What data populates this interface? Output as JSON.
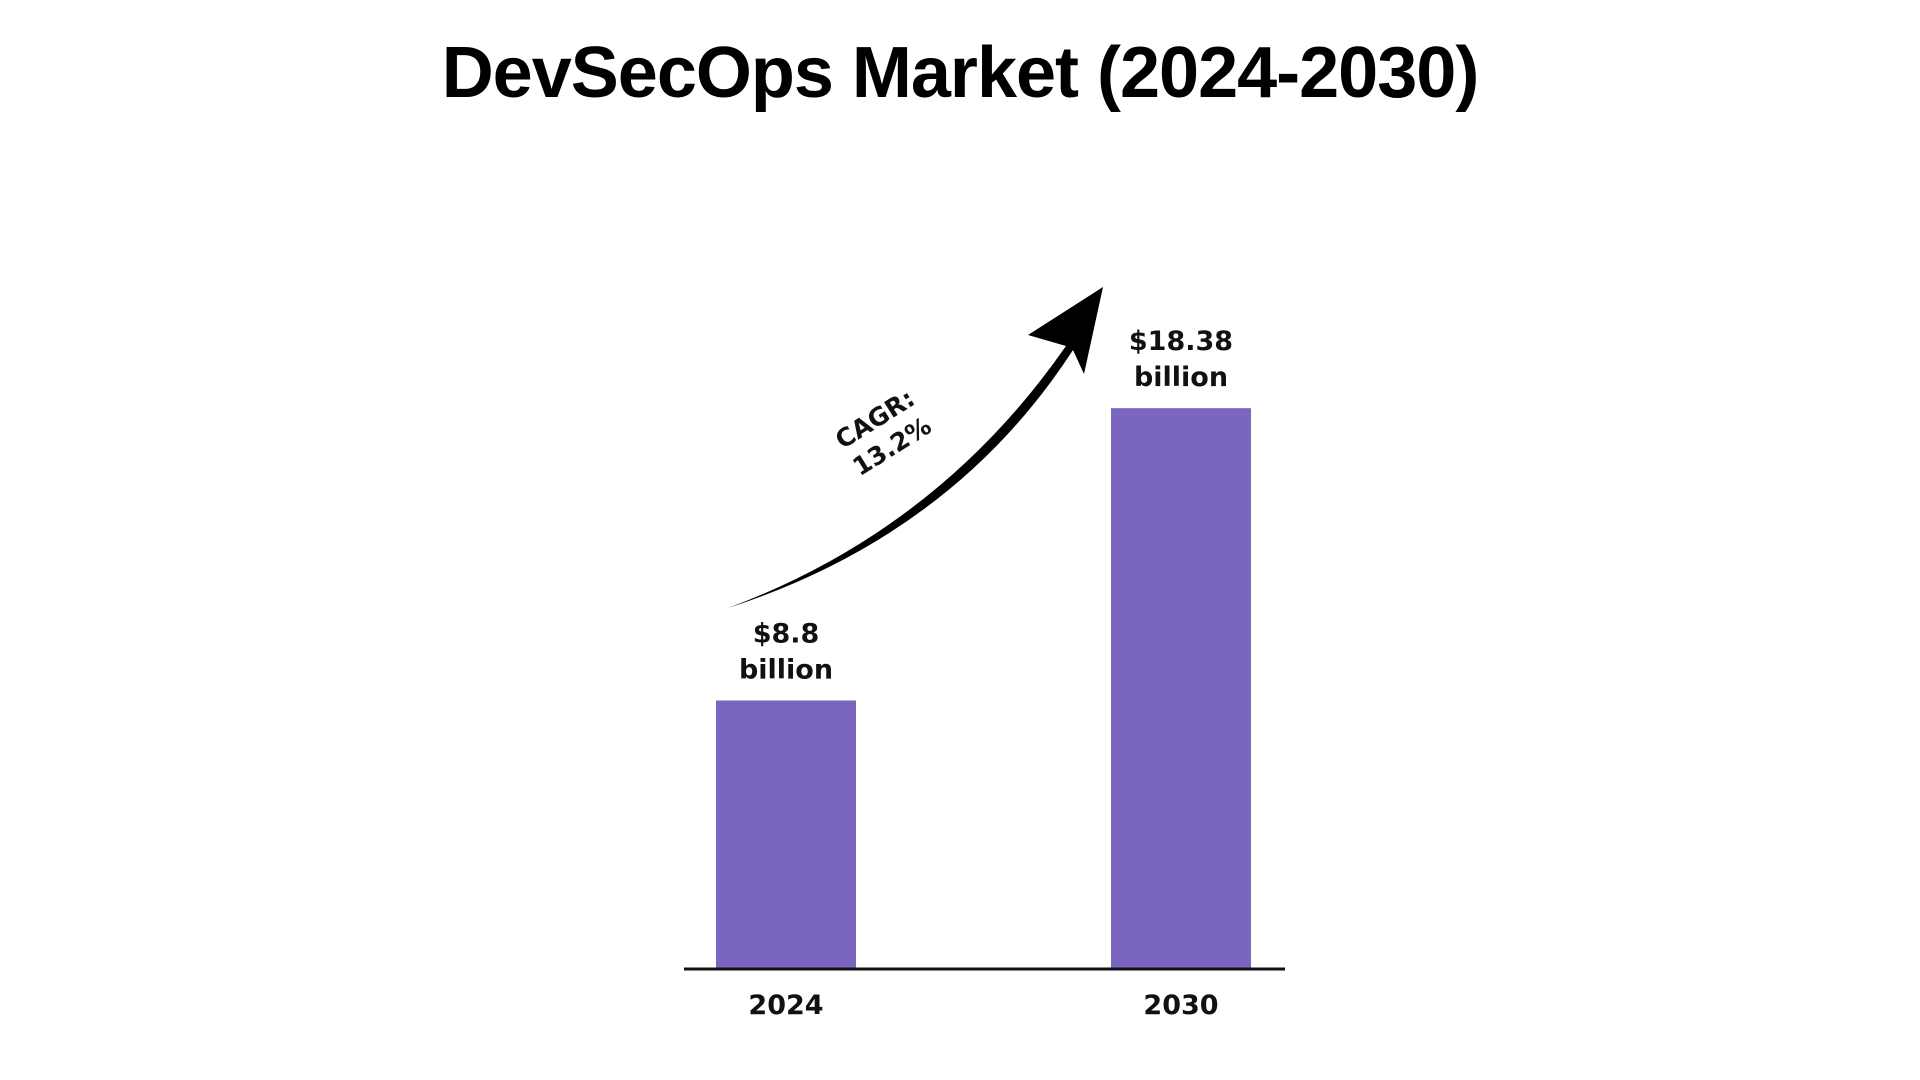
{
  "chart_data": {
    "type": "bar",
    "title": "DevSecOps Market (2024-2030)",
    "categories": [
      "2024",
      "2030"
    ],
    "values": [
      8.8,
      18.38
    ],
    "data_labels": [
      [
        "$8.8",
        "billion"
      ],
      [
        "$18.38",
        "billion"
      ]
    ],
    "unit": "billion",
    "annotation": {
      "lines": [
        "CAGR:",
        "13.2%"
      ]
    },
    "xlabel": "",
    "ylabel": "",
    "ylim": [
      0,
      19.5
    ],
    "grid": false,
    "legend": "none",
    "colors": {
      "bar": "#7A66BE",
      "axis": "#111111",
      "arrow": "#000000"
    }
  }
}
